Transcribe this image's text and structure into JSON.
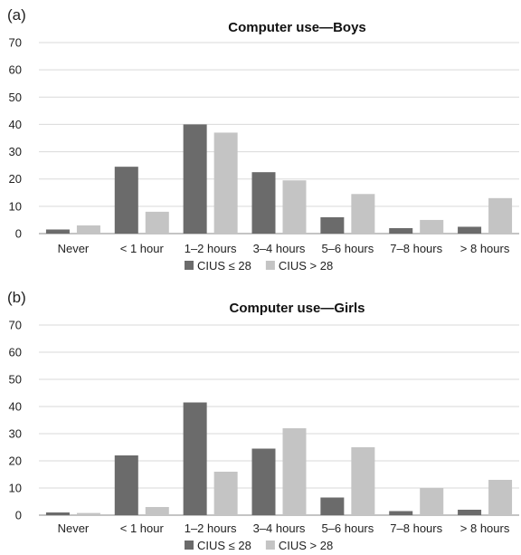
{
  "chart_data": [
    {
      "type": "bar",
      "panel_label": "(a)",
      "title": "Computer use—Boys",
      "categories": [
        "Never",
        "< 1 hour",
        "1–2 hours",
        "3–4 hours",
        "5–6 hours",
        "7–8 hours",
        "> 8 hours"
      ],
      "series": [
        {
          "name": "CIUS ≤ 28",
          "color": "#6b6b6b",
          "values": [
            1.5,
            24.5,
            40,
            22.5,
            6,
            2,
            2.5
          ]
        },
        {
          "name": "CIUS > 28",
          "color": "#c4c4c4",
          "values": [
            3,
            8,
            37,
            19.5,
            14.5,
            5,
            13
          ]
        }
      ],
      "ylim": [
        0,
        70
      ],
      "yticks": [
        0,
        10,
        20,
        30,
        40,
        50,
        60,
        70
      ],
      "grid": true,
      "legend": "bottom"
    },
    {
      "type": "bar",
      "panel_label": "(b)",
      "title": "Computer use—Girls",
      "categories": [
        "Never",
        "< 1 hour",
        "1–2 hours",
        "3–4 hours",
        "5–6 hours",
        "7–8 hours",
        "> 8 hours"
      ],
      "series": [
        {
          "name": "CIUS ≤ 28",
          "color": "#6b6b6b",
          "values": [
            1,
            22,
            41.5,
            24.5,
            6.5,
            1.5,
            2
          ]
        },
        {
          "name": "CIUS > 28",
          "color": "#c4c4c4",
          "values": [
            0.8,
            3,
            16,
            32,
            25,
            10,
            13
          ]
        }
      ],
      "ylim": [
        0,
        70
      ],
      "yticks": [
        0,
        10,
        20,
        30,
        40,
        50,
        60,
        70
      ],
      "grid": true,
      "legend": "bottom"
    }
  ]
}
